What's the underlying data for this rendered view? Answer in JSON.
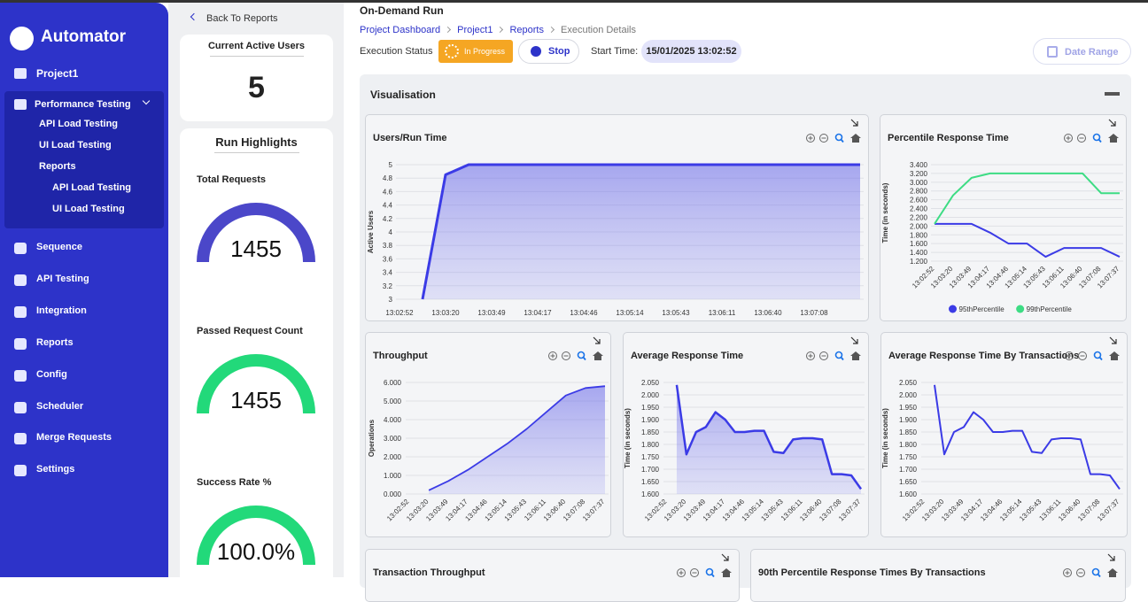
{
  "sidebar": {
    "brand": "Automator",
    "project": "Project1",
    "group": "Performance Testing",
    "group_items": [
      "API Load Testing",
      "UI Load Testing",
      "Reports"
    ],
    "report_items": [
      "API Load Testing",
      "UI Load Testing"
    ],
    "items": [
      "Sequence",
      "API Testing",
      "Integration",
      "Reports",
      "Config",
      "Scheduler",
      "Merge Requests",
      "Settings"
    ]
  },
  "summary": {
    "back": "Back To Reports",
    "active_users": {
      "title": "Current Active Users",
      "value": 5
    },
    "highlights": {
      "title": "Run Highlights",
      "gauges": [
        {
          "label": "Total Requests",
          "value": 1455,
          "color": "#4b47c9"
        },
        {
          "label": "Passed Request Count",
          "value": 1455,
          "color": "#22d97a"
        },
        {
          "label": "Success Rate %",
          "value": 100,
          "value_label": "100.0%",
          "color": "#22d97a"
        }
      ]
    }
  },
  "header": {
    "title": "On-Demand Run",
    "breadcrumbs": [
      "Project Dashboard",
      "Project1",
      "Reports",
      "Execution Details"
    ],
    "status_label": "Execution Status",
    "status": "In Progress",
    "stop": "Stop",
    "start_label": "Start Time:",
    "start_time": "15/01/2025 13:02:52",
    "date_range": "Date Range"
  },
  "visualisation": {
    "title": "Visualisation",
    "charts": [
      {
        "type": "area",
        "title": "Users/Run Time",
        "ylabel": "Active Users",
        "grid": true,
        "categories": [
          "13:02:52",
          null,
          "13:03:20",
          null,
          "13:03:49",
          null,
          "13:04:17",
          null,
          "13:04:46",
          null,
          "13:05:14",
          null,
          "13:05:43",
          null,
          "13:06:11",
          null,
          "13:06:40",
          null,
          "13:07:08",
          null,
          null
        ],
        "series": [
          {
            "name": "Active Users",
            "color": "#3b3be6",
            "values": [
              null,
              3,
              4.85,
              5,
              5,
              5,
              5,
              5,
              5,
              5,
              5,
              5,
              5,
              5,
              5,
              5,
              5,
              5,
              5,
              5,
              5
            ]
          }
        ],
        "ylim": [
          3,
          5
        ],
        "yticks": [
          3,
          3.2,
          3.4,
          3.6,
          3.8,
          4,
          4.2,
          4.4,
          4.6,
          4.8,
          5
        ]
      },
      {
        "type": "line",
        "title": "Percentile Response Time",
        "ylabel": "Time (in seconds)",
        "grid": true,
        "legend": "bottom",
        "categories": [
          "13:02:52",
          "13:03:20",
          "13:03:49",
          "13:04:17",
          "13:04:46",
          "13:05:14",
          "13:05:43",
          "13:06:11",
          "13:06:40",
          "13:07:08",
          "13:07:37"
        ],
        "series": [
          {
            "name": "95thPercentile",
            "color": "#3b3be6",
            "values": [
              2.05,
              2.05,
              2.05,
              1.85,
              1.6,
              1.6,
              1.3,
              1.5,
              1.5,
              1.5,
              1.3
            ]
          },
          {
            "name": "99thPercentile",
            "color": "#3ddc84",
            "values": [
              2.05,
              2.7,
              3.1,
              3.2,
              3.2,
              3.2,
              3.2,
              3.2,
              3.2,
              2.75,
              2.75
            ]
          }
        ],
        "ylim": [
          1.2,
          3.4
        ],
        "yticks": [
          {
            "value": 1.2,
            "label": "1.200"
          },
          {
            "value": 1.4,
            "label": "1.400"
          },
          {
            "value": 1.6,
            "label": "1.600"
          },
          {
            "value": 1.8,
            "label": "1.800"
          },
          {
            "value": 2,
            "label": "2.000"
          },
          {
            "value": 2.2,
            "label": "2.200"
          },
          {
            "value": 2.4,
            "label": "2.400"
          },
          {
            "value": 2.6,
            "label": "2.600"
          },
          {
            "value": 2.8,
            "label": "2.800"
          },
          {
            "value": 3,
            "label": "3.000"
          },
          {
            "value": 3.2,
            "label": "3.200"
          },
          {
            "value": 3.4,
            "label": "3.400"
          }
        ]
      },
      {
        "type": "area",
        "title": "Throughput",
        "ylabel": "Operations",
        "grid": true,
        "categories": [
          "13:02:52",
          "13:03:20",
          "13:03:49",
          "13:04:17",
          "13:04:46",
          "13:05:14",
          "13:05:43",
          "13:06:11",
          "13:06:40",
          "13:07:08",
          "13:07:37"
        ],
        "series": [
          {
            "name": "Operations",
            "color": "#3b3be6",
            "values": [
              null,
              0.2,
              0.7,
              1.3,
              2,
              2.7,
              3.5,
              4.4,
              5.3,
              5.7,
              5.8
            ]
          }
        ],
        "ylim": [
          0,
          6
        ],
        "yticks": [
          {
            "value": 0,
            "label": "0.000"
          },
          {
            "value": 1,
            "label": "1.000"
          },
          {
            "value": 2,
            "label": "2.000"
          },
          {
            "value": 3,
            "label": "3.000"
          },
          {
            "value": 4,
            "label": "4.000"
          },
          {
            "value": 5,
            "label": "5.000"
          },
          {
            "value": 6,
            "label": "6.000"
          }
        ]
      },
      {
        "type": "area",
        "title": "Average Response Time",
        "ylabel": "Time (in seconds)",
        "grid": true,
        "categories": [
          "13:02:52",
          null,
          "13:03:20",
          null,
          "13:03:49",
          null,
          "13:04:17",
          null,
          "13:04:46",
          null,
          "13:05:14",
          null,
          "13:05:43",
          null,
          "13:06:11",
          null,
          "13:06:40",
          null,
          "13:07:08",
          null,
          "13:07:37"
        ],
        "series": [
          {
            "name": "Average Response Time",
            "color": "#3b3be6",
            "values": [
              null,
              2.04,
              1.76,
              1.85,
              1.87,
              1.93,
              1.9,
              1.85,
              1.85,
              1.855,
              1.855,
              1.77,
              1.765,
              1.82,
              1.825,
              1.825,
              1.82,
              1.68,
              1.68,
              1.675,
              1.62
            ]
          }
        ],
        "ylim": [
          1.6,
          2.05
        ],
        "yticks": [
          {
            "value": 1.6,
            "label": "1.600"
          },
          {
            "value": 1.65,
            "label": "1.650"
          },
          {
            "value": 1.7,
            "label": "1.700"
          },
          {
            "value": 1.75,
            "label": "1.750"
          },
          {
            "value": 1.8,
            "label": "1.800"
          },
          {
            "value": 1.85,
            "label": "1.850"
          },
          {
            "value": 1.9,
            "label": "1.900"
          },
          {
            "value": 1.95,
            "label": "1.950"
          },
          {
            "value": 2,
            "label": "2.000"
          },
          {
            "value": 2.05,
            "label": "2.050"
          }
        ]
      },
      {
        "type": "line",
        "title": "Average Response Time By Transactions",
        "ylabel": "Time (in seconds)",
        "grid": true,
        "categories": [
          "13:02:52",
          null,
          "13:03:20",
          null,
          "13:03:49",
          null,
          "13:04:17",
          null,
          "13:04:46",
          null,
          "13:05:14",
          null,
          "13:05:43",
          null,
          "13:06:11",
          null,
          "13:06:40",
          null,
          "13:07:08",
          null,
          "13:07:37"
        ],
        "series": [
          {
            "name": "Average Response Time",
            "color": "#3b3be6",
            "values": [
              null,
              2.04,
              1.76,
              1.85,
              1.87,
              1.93,
              1.9,
              1.85,
              1.85,
              1.855,
              1.855,
              1.77,
              1.765,
              1.82,
              1.825,
              1.825,
              1.82,
              1.68,
              1.68,
              1.675,
              1.62
            ]
          }
        ],
        "ylim": [
          1.6,
          2.05
        ],
        "yticks": [
          {
            "value": 1.6,
            "label": "1.600"
          },
          {
            "value": 1.65,
            "label": "1.650"
          },
          {
            "value": 1.7,
            "label": "1.700"
          },
          {
            "value": 1.75,
            "label": "1.750"
          },
          {
            "value": 1.8,
            "label": "1.800"
          },
          {
            "value": 1.85,
            "label": "1.850"
          },
          {
            "value": 1.9,
            "label": "1.900"
          },
          {
            "value": 1.95,
            "label": "1.950"
          },
          {
            "value": 2,
            "label": "2.000"
          },
          {
            "value": 2.05,
            "label": "2.050"
          }
        ]
      },
      {
        "title": "Transaction Throughput"
      },
      {
        "title": "90th Percentile Response Times By Transactions"
      }
    ]
  }
}
